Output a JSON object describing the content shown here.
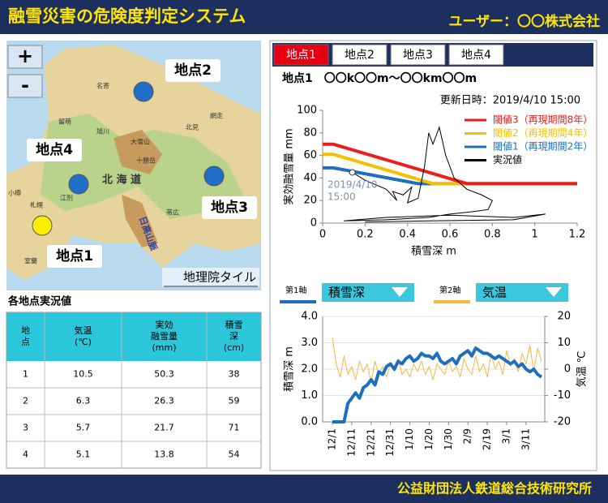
{
  "header": {
    "title": "融雪災害の危険度判定システム",
    "user": "ユーザー：〇〇株式会社"
  },
  "footer": {
    "organization": "公益財団法人鉄道総合技術研究所"
  },
  "map": {
    "zoom_in": "+",
    "zoom_out": "-",
    "attribution": "地理院タイル",
    "points": [
      {
        "label": "地点1",
        "color": "#ffee00"
      },
      {
        "label": "地点2",
        "color": "#1f6fc8"
      },
      {
        "label": "地点3",
        "color": "#1f6fc8"
      },
      {
        "label": "地点4",
        "color": "#1f6fc8"
      }
    ],
    "place_names": [
      "名寄",
      "旭川",
      "北見",
      "網走",
      "留萌",
      "北 海 道",
      "大雪山",
      "十勝岳",
      "帯広",
      "札幌",
      "江別",
      "日高山脈",
      "室蘭",
      "小樽"
    ]
  },
  "table_title": "各地点実況値",
  "table": {
    "header": [
      [
        "地",
        "点"
      ],
      [
        "気温",
        "(℃)"
      ],
      [
        "実効",
        "融雪量",
        "(mm)"
      ],
      [
        "積雪",
        "深",
        "(cm)"
      ]
    ],
    "rows": [
      [
        1,
        10.5,
        50.3,
        38
      ],
      [
        2,
        6.3,
        26.3,
        59
      ],
      [
        3,
        5.7,
        21.7,
        71
      ],
      [
        4,
        5.1,
        13.8,
        54
      ]
    ]
  },
  "tabs": [
    "地点1",
    "地点2",
    "地点3",
    "地点4"
  ],
  "active_tab": 0,
  "section": "地点1　〇〇k〇〇m〜〇〇km〇〇m",
  "updated": "更新日時：2019/4/10 15:00",
  "threshold_chart": {
    "type": "line",
    "xlabel": "積雪深 m",
    "ylabel": "実効融雪量 mm",
    "xlim": [
      0,
      1.2
    ],
    "xticks": [
      0,
      0.2,
      0.4,
      0.6,
      0.8,
      1,
      1.2
    ],
    "ylim": [
      0,
      100
    ],
    "yticks": [
      0,
      20,
      40,
      60,
      80,
      100
    ],
    "annotation": {
      "lines": [
        "2019/4/10",
        "15:00"
      ],
      "x": 0.14,
      "y": 45
    },
    "series": [
      {
        "name": "閾値3（再現期間8年）",
        "color": "#ee1c1c",
        "x": [
          0,
          0.05,
          0.68,
          1.2
        ],
        "values": [
          70,
          70,
          35,
          35
        ]
      },
      {
        "name": "閾値2（再現期間4年）",
        "color": "#f5c000",
        "x": [
          0,
          0.05,
          0.52,
          1.2
        ],
        "values": [
          61,
          61,
          35,
          35
        ]
      },
      {
        "name": "閾値1（再現期間2年）",
        "color": "#1f6fbf",
        "x": [
          0,
          0.05,
          0.45,
          1.2
        ],
        "values": [
          49,
          49,
          35,
          35
        ]
      },
      {
        "name": "実況値",
        "color": "#000000",
        "x": [
          0.14,
          0.2,
          0.3,
          0.35,
          0.33,
          0.38,
          0.42,
          0.4,
          0.45,
          0.48,
          0.5,
          0.52,
          0.55,
          0.58,
          0.6,
          0.62,
          0.68,
          0.75,
          0.8,
          0.78,
          0.7,
          0.6,
          0.5,
          0.3,
          0.1,
          0.3,
          0.6,
          0.9,
          1.05,
          0.9,
          0.5,
          0.2
        ],
        "values": [
          45,
          38,
          30,
          20,
          28,
          25,
          32,
          18,
          22,
          50,
          80,
          70,
          85,
          60,
          50,
          40,
          30,
          25,
          20,
          12,
          10,
          8,
          5,
          3,
          2,
          5,
          7,
          5,
          8,
          3,
          2,
          1
        ]
      }
    ]
  },
  "axis_selectors": [
    {
      "label": "第1軸",
      "value": "積雪深",
      "color": "#1f6fbf"
    },
    {
      "label": "第2軸",
      "value": "気温",
      "color": "#f5b942"
    }
  ],
  "time_chart": {
    "type": "line",
    "ylabel": "積雪深 m",
    "y2label": "気温 ℃",
    "categories": [
      "12/1",
      null,
      null,
      null,
      null,
      "12/11",
      null,
      null,
      null,
      null,
      "12/21",
      null,
      null,
      null,
      null,
      "12/31",
      null,
      null,
      null,
      null,
      "1/10",
      null,
      null,
      null,
      null,
      "1/20",
      null,
      null,
      null,
      null,
      "1/30",
      null,
      null,
      null,
      null,
      "2/9",
      null,
      null,
      null,
      null,
      "2/19",
      null,
      null,
      null,
      null,
      "3/1",
      null,
      null,
      null,
      null,
      "3/11",
      null,
      null,
      null,
      null
    ],
    "ylim": [
      0,
      4
    ],
    "yticks": [
      {
        "value": 0,
        "label": "0.0"
      },
      {
        "value": 1,
        "label": "1.0"
      },
      {
        "value": 2,
        "label": "2.0"
      },
      {
        "value": 3,
        "label": "3.0"
      },
      {
        "value": 4,
        "label": "4.0"
      }
    ],
    "y2lim": [
      -20,
      20
    ],
    "y2ticks": [
      -20,
      -10,
      0,
      10,
      20
    ],
    "grid": true,
    "series": [
      {
        "color": "#f5b942",
        "axis": "y2",
        "values": [
          12,
          2,
          -3,
          5,
          -2,
          1,
          -4,
          3,
          -1,
          2,
          -5,
          3,
          -2,
          1,
          -3,
          2,
          -1,
          4,
          -2,
          0,
          -3,
          2,
          -1,
          3,
          -2,
          1,
          -4,
          2,
          0,
          -2,
          3,
          -1,
          1,
          -3,
          4,
          0,
          -2,
          5,
          -1,
          2,
          -3,
          6,
          0,
          3,
          -2,
          7,
          1,
          4,
          -1,
          6,
          2,
          9,
          -1,
          8,
          3
        ]
      },
      {
        "color": "#1f6fbf",
        "values": [
          0,
          0,
          0,
          0,
          0.7,
          0.9,
          1.1,
          0.9,
          1.3,
          1.4,
          1.6,
          1.4,
          1.9,
          1.8,
          2.1,
          2.2,
          2.0,
          2.3,
          2.2,
          2.4,
          2.5,
          2.3,
          2.4,
          2.6,
          2.5,
          2.5,
          2.4,
          2.6,
          2.3,
          2.2,
          2.3,
          2.4,
          2.2,
          2.5,
          2.6,
          2.7,
          2.5,
          2.8,
          2.7,
          2.6,
          2.6,
          2.5,
          2.4,
          2.5,
          2.4,
          2.3,
          2.2,
          2.3,
          2.1,
          2.2,
          2.0,
          1.9,
          2.0,
          1.8,
          1.7
        ]
      }
    ]
  }
}
